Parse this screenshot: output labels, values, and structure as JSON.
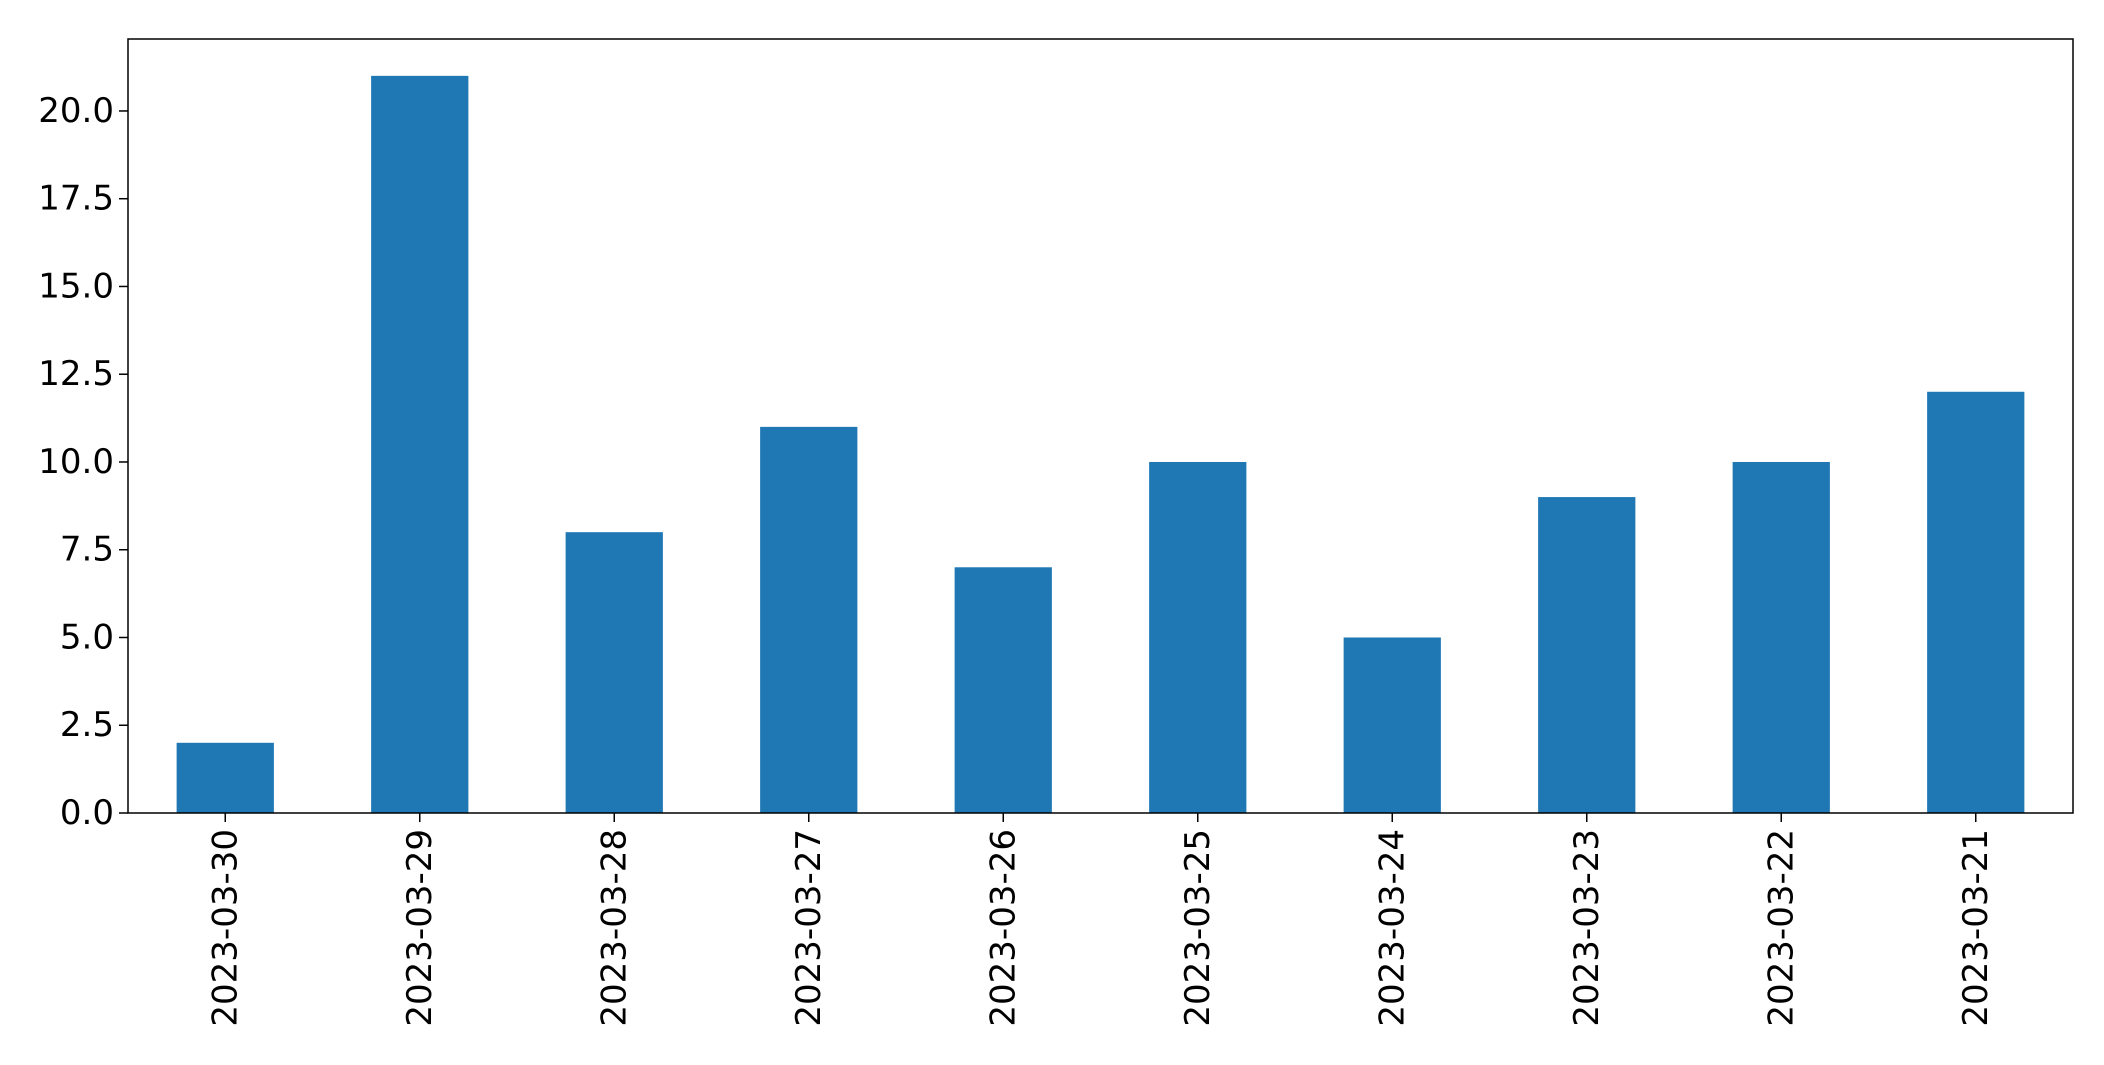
{
  "chart_data": {
    "type": "bar",
    "title": "",
    "xlabel": "",
    "ylabel": "",
    "categories": [
      "2023-03-30",
      "2023-03-29",
      "2023-03-28",
      "2023-03-27",
      "2023-03-26",
      "2023-03-25",
      "2023-03-24",
      "2023-03-23",
      "2023-03-22",
      "2023-03-21"
    ],
    "values": [
      2,
      21,
      8,
      11,
      7,
      10,
      5,
      9,
      10,
      12
    ],
    "ylim": [
      0,
      22.05
    ],
    "yticks": [
      "0.0",
      "2.5",
      "5.0",
      "7.5",
      "10.0",
      "12.5",
      "15.0",
      "17.5",
      "20.0"
    ],
    "bar_color": "#1f77b4",
    "grid": false,
    "legend": "none"
  }
}
